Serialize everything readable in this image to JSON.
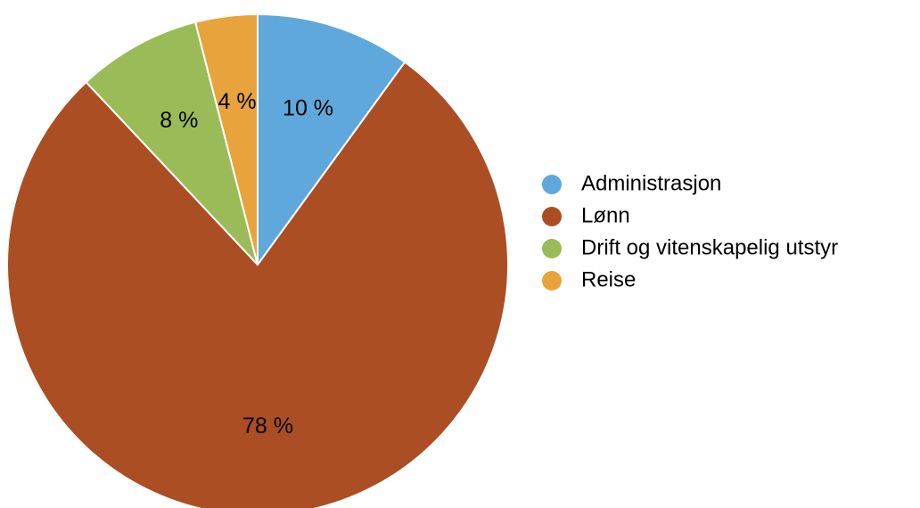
{
  "chart_data": {
    "type": "pie",
    "categories": [
      "Administrasjon",
      "Lønn",
      "Drift og vitenskapelig utstyr",
      "Reise"
    ],
    "values": [
      10,
      78,
      8,
      4
    ],
    "value_labels": [
      "10 %",
      "78 %",
      "8 %",
      "4 %"
    ],
    "colors": [
      "#5fa8dc",
      "#ab4e24",
      "#9bbb59",
      "#e8a33d"
    ],
    "legend": "right"
  }
}
